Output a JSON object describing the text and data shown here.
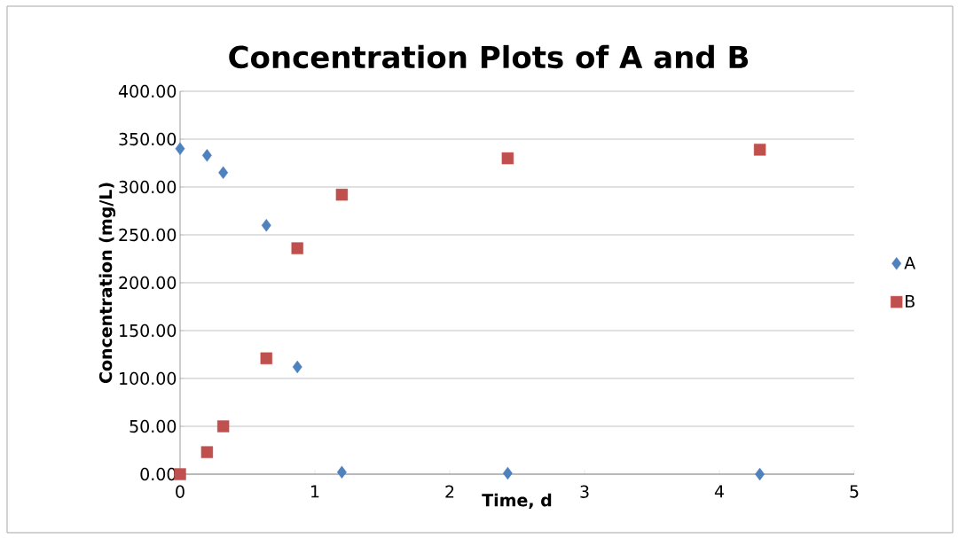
{
  "chart_data": {
    "type": "scatter",
    "title": "Concentration Plots of A and B",
    "xlabel": "Time, d",
    "ylabel": "Concentration  (mg/L)",
    "xlim": [
      0,
      5
    ],
    "xticks": [
      0,
      1,
      2,
      3,
      4,
      5
    ],
    "ylim": [
      0,
      400
    ],
    "yticks": [
      {
        "value": 0,
        "label": "0.00"
      },
      {
        "value": 50,
        "label": "50.00"
      },
      {
        "value": 100,
        "label": "100.00"
      },
      {
        "value": 150,
        "label": "150.00"
      },
      {
        "value": 200,
        "label": "200.00"
      },
      {
        "value": 250,
        "label": "250.00"
      },
      {
        "value": 300,
        "label": "300.00"
      },
      {
        "value": 350,
        "label": "350.00"
      },
      {
        "value": 400,
        "label": "400.00"
      }
    ],
    "grid": "y",
    "legend": "right",
    "series": [
      {
        "name": "A",
        "color": "#4f81bd",
        "marker": "diamond",
        "x": [
          0,
          0.2,
          0.32,
          0.64,
          0.87,
          1.2,
          2.43,
          4.3
        ],
        "values": [
          340,
          333,
          315,
          260,
          112,
          2,
          1,
          0
        ]
      },
      {
        "name": "B",
        "color": "#c0504d",
        "marker": "square",
        "x": [
          0,
          0.2,
          0.32,
          0.64,
          0.87,
          1.2,
          2.43,
          4.3
        ],
        "values": [
          0,
          23,
          50,
          121,
          236,
          292,
          330,
          339
        ]
      }
    ]
  }
}
